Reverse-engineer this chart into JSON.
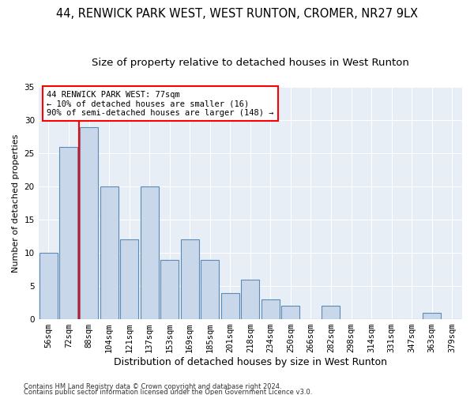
{
  "title": "44, RENWICK PARK WEST, WEST RUNTON, CROMER, NR27 9LX",
  "subtitle": "Size of property relative to detached houses in West Runton",
  "xlabel": "Distribution of detached houses by size in West Runton",
  "ylabel": "Number of detached properties",
  "footnote1": "Contains HM Land Registry data © Crown copyright and database right 2024.",
  "footnote2": "Contains public sector information licensed under the Open Government Licence v3.0.",
  "categories": [
    "56sqm",
    "72sqm",
    "88sqm",
    "104sqm",
    "121sqm",
    "137sqm",
    "153sqm",
    "169sqm",
    "185sqm",
    "201sqm",
    "218sqm",
    "234sqm",
    "250sqm",
    "266sqm",
    "282sqm",
    "298sqm",
    "314sqm",
    "331sqm",
    "347sqm",
    "363sqm",
    "379sqm"
  ],
  "values": [
    10,
    26,
    29,
    20,
    12,
    20,
    9,
    12,
    9,
    4,
    6,
    3,
    2,
    0,
    2,
    0,
    0,
    0,
    0,
    1,
    0
  ],
  "bar_color": "#c8d8ea",
  "bar_edge_color": "#5a8ab5",
  "background_color": "#e8eef6",
  "grid_color": "#ffffff",
  "red_line_x": 1.5,
  "annotation_line1": "44 RENWICK PARK WEST: 77sqm",
  "annotation_line2": "← 10% of detached houses are smaller (16)",
  "annotation_line3": "90% of semi-detached houses are larger (148) →",
  "ylim_min": 0,
  "ylim_max": 35,
  "yticks": [
    0,
    5,
    10,
    15,
    20,
    25,
    30,
    35
  ],
  "title_fontsize": 10.5,
  "subtitle_fontsize": 9.5,
  "xlabel_fontsize": 9,
  "ylabel_fontsize": 8,
  "tick_fontsize": 7.5,
  "annot_fontsize": 7.5,
  "footnote_fontsize": 6.0
}
